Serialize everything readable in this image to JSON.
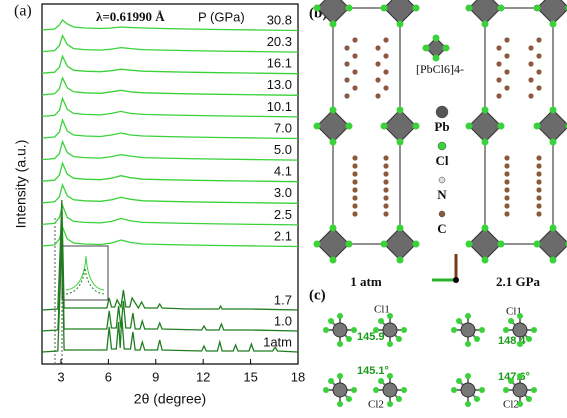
{
  "chart_data": {
    "type": "line",
    "panel_label": "(a)",
    "annotation": "λ=0.61990 Å",
    "legend_title": "P (GPa)",
    "x_label": "2θ (degree)",
    "y_label": "Intensity (a.u.)",
    "xlim": [
      1.8,
      18
    ],
    "xticks": [
      3,
      6,
      9,
      12,
      15,
      18
    ],
    "series": [
      {
        "name": "30.8",
        "color": "#3ad23a",
        "x": [
          1.8,
          2.6,
          2.9,
          3.1,
          3.4,
          3.8,
          4.5,
          5.5,
          6.2,
          6.8,
          7.4,
          8.2,
          9.5,
          11,
          13,
          15.5,
          18
        ],
        "values": [
          0,
          1,
          5,
          10,
          6,
          3,
          2,
          1.5,
          2,
          3,
          2.5,
          2,
          1.5,
          1,
          0.5,
          0,
          -0.5
        ]
      },
      {
        "name": "20.3",
        "color": "#3ad23a",
        "x": [
          1.8,
          2.6,
          2.9,
          3.1,
          3.4,
          3.8,
          4.5,
          5.5,
          6.2,
          6.8,
          7.4,
          8.2,
          9.5,
          11,
          13,
          15.5,
          18
        ],
        "values": [
          0,
          1,
          6,
          16,
          7,
          3,
          2,
          1.5,
          2.5,
          4,
          3,
          2,
          1.5,
          1,
          0.5,
          0,
          -0.5
        ]
      },
      {
        "name": "16.1",
        "color": "#3ad23a",
        "x": [
          1.8,
          2.6,
          2.9,
          3.1,
          3.4,
          3.8,
          4.5,
          5.5,
          6.2,
          6.8,
          7.4,
          8.2,
          9.5,
          11,
          13,
          15.5,
          18
        ],
        "values": [
          0,
          1,
          6,
          17,
          7,
          3,
          2,
          1.5,
          2.5,
          4,
          3,
          2,
          1.5,
          1,
          0.5,
          0,
          -0.5
        ]
      },
      {
        "name": "13.0",
        "color": "#3ad23a",
        "x": [
          1.8,
          2.6,
          2.9,
          3.1,
          3.4,
          3.8,
          4.5,
          5.5,
          6.2,
          6.8,
          7.4,
          8.2,
          9.5,
          11,
          13,
          15.5,
          18
        ],
        "values": [
          0,
          1,
          6,
          17,
          7,
          3,
          2,
          1.5,
          3,
          4.5,
          3,
          2,
          1.5,
          1,
          0.5,
          0,
          -0.5
        ]
      },
      {
        "name": "10.1",
        "color": "#3ad23a",
        "x": [
          1.8,
          2.6,
          2.9,
          3.1,
          3.4,
          3.8,
          4.5,
          5.5,
          6.2,
          6.8,
          7.4,
          8.2,
          9.5,
          11,
          13,
          15.5,
          18
        ],
        "values": [
          0,
          1,
          6,
          18,
          7,
          3,
          2,
          1.5,
          3,
          5,
          3,
          2,
          1.5,
          1,
          0.5,
          0,
          -0.5
        ]
      },
      {
        "name": "7.0",
        "color": "#3ad23a",
        "x": [
          1.8,
          2.6,
          2.9,
          3.1,
          3.4,
          3.8,
          4.5,
          5.5,
          6.2,
          6.8,
          7.4,
          8.2,
          9.5,
          11,
          13,
          15.5,
          18
        ],
        "values": [
          0,
          1,
          6,
          18,
          7,
          3,
          2,
          1.5,
          3,
          5,
          3,
          2,
          1.5,
          1,
          0.5,
          0,
          -0.5
        ]
      },
      {
        "name": "5.0",
        "color": "#3ad23a",
        "x": [
          1.8,
          2.6,
          2.9,
          3.1,
          3.4,
          3.8,
          4.5,
          5.5,
          6.2,
          6.8,
          7.4,
          8.2,
          9.5,
          11,
          13,
          15.5,
          18
        ],
        "values": [
          0,
          1,
          6,
          18,
          7,
          3,
          2,
          1.5,
          3,
          5,
          3.5,
          2,
          1.5,
          1,
          0.5,
          0,
          -0.5
        ]
      },
      {
        "name": "4.1",
        "color": "#3ad23a",
        "x": [
          1.8,
          2.6,
          2.9,
          3.1,
          3.4,
          3.8,
          4.5,
          5.5,
          6.2,
          6.8,
          7.4,
          8.2,
          9.5,
          11,
          13,
          15.5,
          18
        ],
        "values": [
          0,
          1,
          6,
          18,
          7,
          3,
          2,
          1.5,
          3,
          5.5,
          3.5,
          2,
          1.5,
          1,
          0.5,
          0,
          -0.5
        ]
      },
      {
        "name": "3.0",
        "color": "#3ad23a",
        "x": [
          1.8,
          2.6,
          2.9,
          3.1,
          3.4,
          3.8,
          4.5,
          5.5,
          6.2,
          6.8,
          7.4,
          8.2,
          9.5,
          11,
          13,
          15.5,
          18
        ],
        "values": [
          0,
          1,
          6,
          18,
          7,
          3,
          2,
          1.5,
          3,
          5.5,
          3.5,
          2,
          1.5,
          1,
          0.5,
          0,
          -0.5
        ]
      },
      {
        "name": "2.5",
        "color": "#3ad23a",
        "x": [
          1.8,
          2.6,
          2.9,
          3.1,
          3.4,
          3.8,
          4.5,
          5.5,
          6.2,
          6.8,
          7.4,
          8.2,
          9.5,
          11,
          13,
          15.5,
          18
        ],
        "values": [
          0,
          1,
          7,
          19,
          7,
          3,
          2,
          1.5,
          3,
          6,
          3.5,
          2,
          1.5,
          1,
          0.5,
          0,
          -0.5
        ]
      },
      {
        "name": "2.1",
        "color": "#3ad23a",
        "x": [
          1.8,
          2.6,
          2.9,
          3.1,
          3.4,
          3.8,
          4.5,
          5.5,
          6.2,
          6.8,
          7.4,
          8.2,
          9.5,
          11,
          13,
          15.5,
          18
        ],
        "values": [
          0,
          1,
          7,
          19,
          7,
          3,
          2,
          1.5,
          3,
          6,
          3.5,
          2,
          1.5,
          1,
          0.5,
          0,
          -0.5
        ]
      },
      {
        "name": "1.7",
        "color": "#1f7d1f",
        "x": [
          1.8,
          2.8,
          2.95,
          3.05,
          3.2,
          5.9,
          6.05,
          6.2,
          6.4,
          6.55,
          6.8,
          6.95,
          7.1,
          7.35,
          7.5,
          7.9,
          8.1,
          8.3,
          9.1,
          9.25,
          9.4,
          11,
          13,
          13.1,
          13.2,
          15,
          18
        ],
        "values": [
          0,
          1,
          60,
          110,
          2,
          2,
          12,
          3,
          3,
          10,
          3,
          20,
          3,
          3,
          12,
          2,
          8,
          2,
          2,
          6,
          2,
          1,
          1,
          4,
          1,
          1,
          0
        ]
      },
      {
        "name": "1.0",
        "color": "#1f7d1f",
        "x": [
          1.8,
          2.8,
          2.95,
          3.05,
          3.2,
          5.9,
          6.05,
          6.2,
          6.5,
          6.65,
          6.8,
          6.95,
          7.1,
          7.4,
          7.55,
          7.7,
          8.0,
          8.15,
          8.3,
          9.1,
          9.25,
          9.4,
          11.9,
          12.05,
          12.2,
          13.0,
          13.15,
          13.3,
          15,
          18
        ],
        "values": [
          0,
          1,
          50,
          100,
          2,
          2,
          20,
          3,
          3,
          25,
          3,
          30,
          3,
          3,
          18,
          2,
          2,
          10,
          2,
          2,
          8,
          2,
          1,
          5,
          1,
          1,
          7,
          1,
          1,
          0
        ]
      },
      {
        "name": "1atm",
        "color": "#1f7d1f",
        "x": [
          1.8,
          2.8,
          2.95,
          3.05,
          3.2,
          5.9,
          6.05,
          6.2,
          6.5,
          6.65,
          6.75,
          6.85,
          7.0,
          7.4,
          7.55,
          7.7,
          8.0,
          8.15,
          8.3,
          9.1,
          9.25,
          9.4,
          11.9,
          12.05,
          12.2,
          12.9,
          13.05,
          13.2,
          13.9,
          14.05,
          14.2,
          14.9,
          15.05,
          15.2,
          16.4,
          16.55,
          16.7,
          18
        ],
        "values": [
          0,
          1,
          65,
          130,
          2,
          2,
          25,
          3,
          3,
          30,
          4,
          35,
          3,
          3,
          20,
          2,
          2,
          10,
          2,
          2,
          12,
          2,
          1,
          6,
          1,
          1,
          10,
          1,
          1,
          7,
          1,
          1,
          8,
          1,
          1,
          5,
          1,
          0
        ]
      }
    ]
  },
  "structure": {
    "panel_b": "(b)",
    "octahedron": "[PbCl6]4-",
    "legend": [
      "Pb",
      "Cl",
      "N",
      "C"
    ],
    "left": "1 atm",
    "right": "2.1 GPa",
    "panel_c": "(c)",
    "c_left": {
      "top": "Cl1",
      "angle_top": "145.9°",
      "angle_bottom": "145.1°",
      "bottom": "Cl2"
    },
    "c_right": {
      "top": "Cl1",
      "angle_top": "148.4°",
      "angle_bottom": "147.6°",
      "bottom": "Cl2"
    }
  }
}
